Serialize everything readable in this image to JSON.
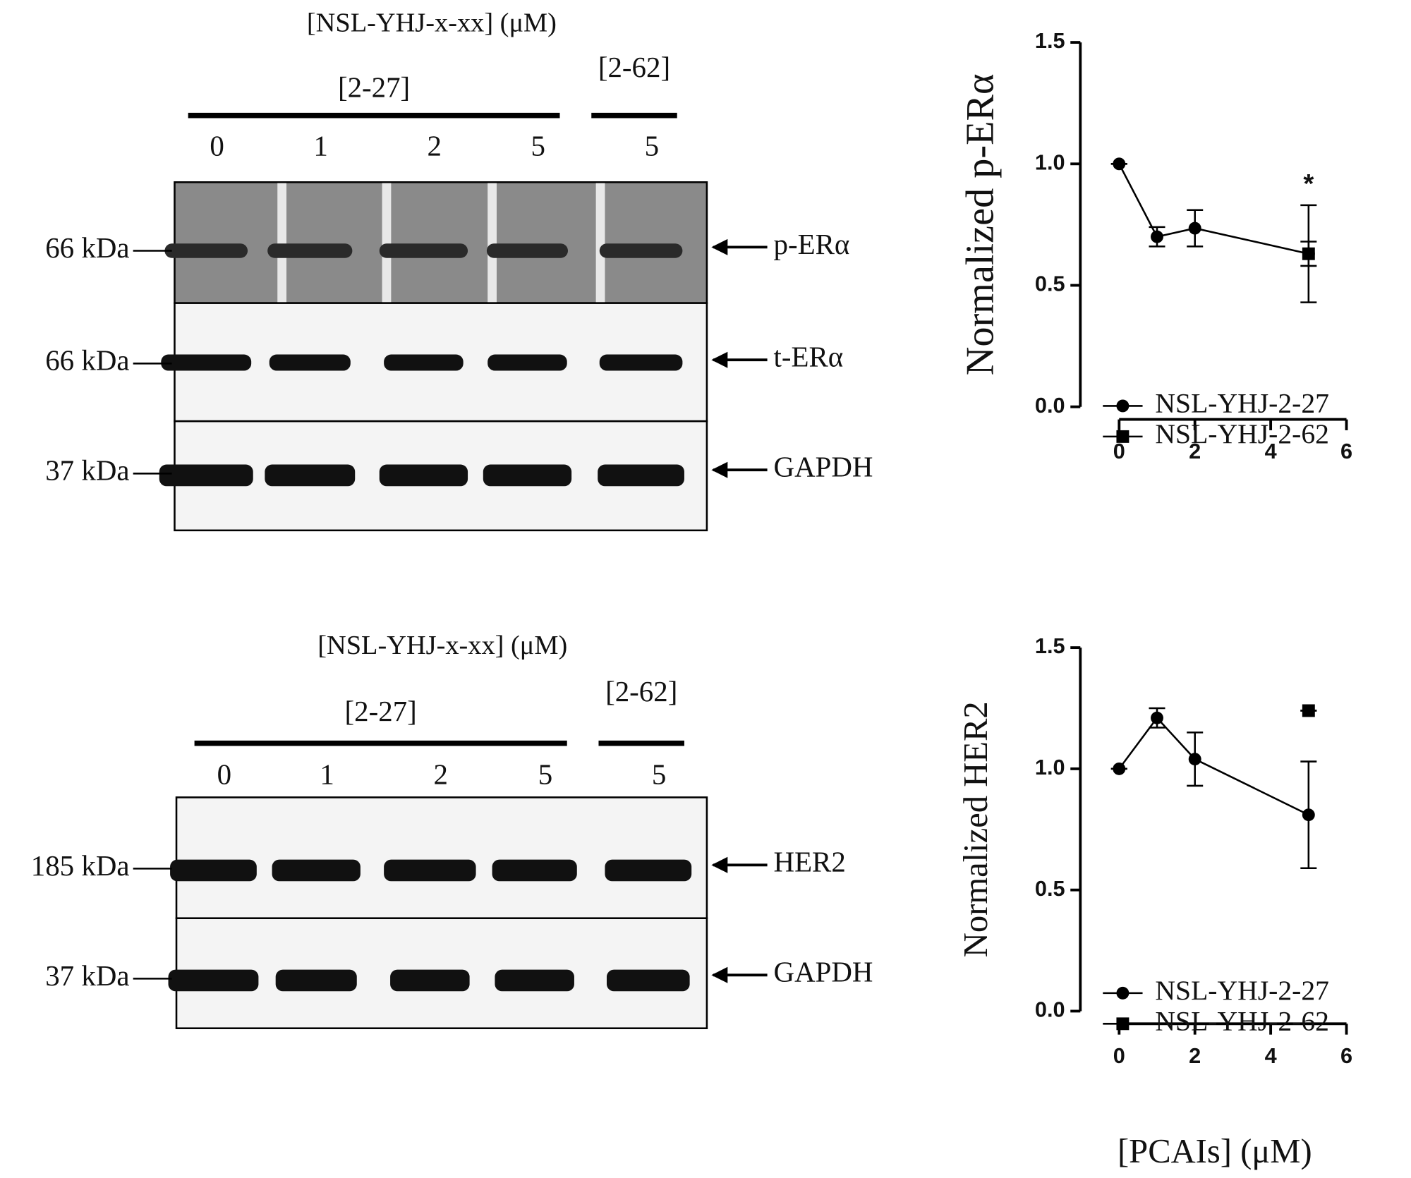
{
  "blots": [
    {
      "title": "[NSL-YHJ-x-xx]  (μM)",
      "groups": [
        "[2-27]",
        "[2-62]"
      ],
      "lanes": [
        "0",
        "1",
        "2",
        "5",
        "5"
      ],
      "rows": [
        {
          "marker": "66 kDa",
          "label": "p-ERα"
        },
        {
          "marker": "66 kDa",
          "label": "t-ERα"
        },
        {
          "marker": "37 kDa",
          "label": "GAPDH"
        }
      ]
    },
    {
      "title": "[NSL-YHJ-x-xx]  (μM)",
      "groups": [
        "[2-27]",
        "[2-62]"
      ],
      "lanes": [
        "0",
        "1",
        "2",
        "5",
        "5"
      ],
      "rows": [
        {
          "marker": "185 kDa",
          "label": "HER2"
        },
        {
          "marker": "37 kDa",
          "label": "GAPDH"
        }
      ]
    }
  ],
  "chart_data": [
    {
      "type": "line",
      "ylabel": "Normalized p-ERα",
      "annotation": "*",
      "series": [
        {
          "name": "NSL-YHJ-2-27",
          "color": "#000000",
          "marker": "circle",
          "x": [
            0,
            1,
            2,
            5
          ],
          "values": [
            1.0,
            0.7,
            0.735,
            0.63
          ],
          "errors": [
            0,
            0.04,
            0.075,
            0.2
          ]
        },
        {
          "name": "NSL-YHJ-2-62",
          "color": "#000000",
          "marker": "square",
          "x": [
            5
          ],
          "values": [
            0.63
          ],
          "errors": [
            0.05
          ]
        }
      ],
      "xlim": [
        0,
        6
      ],
      "xticks": [
        0,
        2,
        4,
        6
      ],
      "ylim": [
        0,
        1.5
      ],
      "yticks": [
        {
          "value": 0,
          "label": "0.0"
        },
        0.5,
        {
          "value": 1,
          "label": "1.0"
        },
        1.5
      ],
      "legend": "lower right"
    },
    {
      "type": "line",
      "ylabel": "Normalized HER2",
      "xlabel": "[PCAIs] (μM)",
      "series": [
        {
          "name": "NSL-YHJ-2-27",
          "color": "#000000",
          "marker": "circle",
          "x": [
            0,
            1,
            2,
            5
          ],
          "values": [
            1.0,
            1.21,
            1.04,
            0.81
          ],
          "errors": [
            0,
            0.04,
            0.11,
            0.22
          ]
        },
        {
          "name": "NSL-YHJ-2-62",
          "color": "#000000",
          "marker": "square",
          "x": [
            5
          ],
          "values": [
            1.24
          ],
          "errors": [
            0
          ]
        }
      ],
      "xlim": [
        0,
        6
      ],
      "xticks": [
        0,
        2,
        4,
        6
      ],
      "ylim": [
        0,
        1.5
      ],
      "yticks": [
        {
          "value": 0,
          "label": "0.0"
        },
        0.5,
        {
          "value": 1,
          "label": "1.0"
        },
        1.5
      ],
      "legend": "lower right"
    }
  ]
}
